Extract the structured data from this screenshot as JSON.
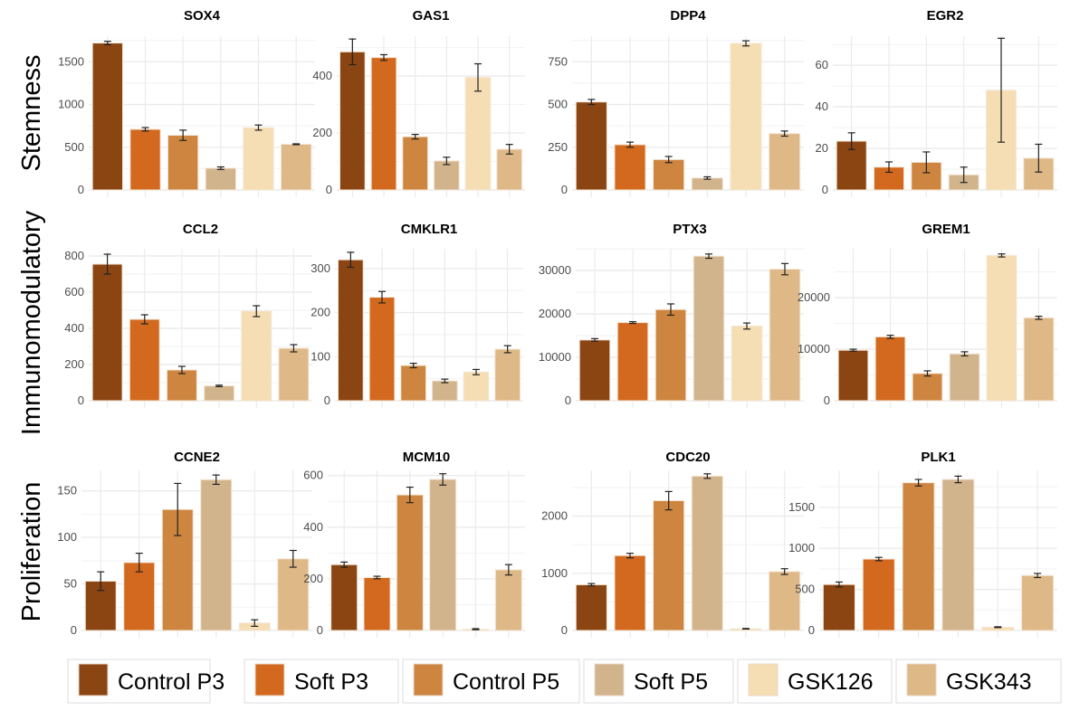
{
  "chart_data": {
    "type": "bar",
    "categories": [
      "Control P3",
      "Soft P3",
      "Control P5",
      "Soft P5",
      "GSK126",
      "GSK343"
    ],
    "colors": [
      "#8B4513",
      "#D2691E",
      "#CD853F",
      "#D2B48C",
      "#F5DEB3",
      "#DEB887"
    ],
    "legend": {
      "placement": "bottom",
      "entries": [
        "Control P3",
        "Soft P3",
        "Control P5",
        "Soft P5",
        "GSK126",
        "GSK343"
      ]
    },
    "grid": true,
    "error_bars": true,
    "rows": [
      {
        "label": "Stemness",
        "panels": [
          {
            "title": "SOX4",
            "ylim": [
              0,
              1800
            ],
            "yticks": [
              0,
              500,
              1000,
              1500
            ],
            "values": [
              1720,
              710,
              640,
              255,
              730,
              535
            ],
            "errors": [
              20,
              20,
              60,
              15,
              30,
              5
            ]
          },
          {
            "title": "GAS1",
            "ylim": [
              0,
              540
            ],
            "yticks": [
              0,
              200,
              400
            ],
            "values": [
              485,
              465,
              187,
              102,
              395,
              143
            ],
            "errors": [
              45,
              10,
              8,
              13,
              48,
              17
            ]
          },
          {
            "title": "DPP4",
            "ylim": [
              0,
              900
            ],
            "yticks": [
              0,
              250,
              500,
              750
            ],
            "values": [
              515,
              265,
              178,
              70,
              858,
              330
            ],
            "errors": [
              15,
              15,
              18,
              7,
              15,
              15
            ]
          },
          {
            "title": "EGR2",
            "ylim": [
              0,
              74
            ],
            "yticks": [
              0,
              20,
              40,
              60
            ],
            "values": [
              23.5,
              11,
              13.3,
              7.3,
              48,
              15.3
            ],
            "errors": [
              4,
              2.5,
              5,
              3.7,
              25,
              6.7
            ]
          }
        ]
      },
      {
        "label": "Immunomodulatory",
        "panels": [
          {
            "title": "CCL2",
            "ylim": [
              0,
              840
            ],
            "yticks": [
              0,
              200,
              400,
              600,
              800
            ],
            "values": [
              755,
              450,
              170,
              82,
              495,
              290
            ],
            "errors": [
              55,
              25,
              20,
              4,
              30,
              20
            ]
          },
          {
            "title": "CMKLR1",
            "ylim": [
              0,
              345
            ],
            "yticks": [
              0,
              100,
              200,
              300
            ],
            "values": [
              320,
              235,
              80,
              45,
              65,
              117
            ],
            "errors": [
              17,
              13,
              5,
              4,
              6,
              8
            ]
          },
          {
            "title": "PTX3",
            "ylim": [
              0,
              35000
            ],
            "yticks": [
              0,
              10000,
              20000,
              30000
            ],
            "values": [
              14000,
              18000,
              21000,
              33300,
              17200,
              30300
            ],
            "errors": [
              300,
              200,
              1300,
              500,
              700,
              1300
            ]
          },
          {
            "title": "GREM1",
            "ylim": [
              0,
              29500
            ],
            "yticks": [
              0,
              10000,
              20000
            ],
            "values": [
              9800,
              12400,
              5300,
              9100,
              28200,
              16100
            ],
            "errors": [
              200,
              300,
              500,
              400,
              300,
              300
            ]
          }
        ]
      },
      {
        "label": "Proliferation",
        "panels": [
          {
            "title": "CCNE2",
            "ylim": [
              0,
              172
            ],
            "yticks": [
              0,
              50,
              100,
              150
            ],
            "values": [
              53,
              73,
              130,
              162,
              8,
              77
            ],
            "errors": [
              10,
              10,
              28,
              5,
              3.5,
              9
            ]
          },
          {
            "title": "MCM10",
            "ylim": [
              0,
              620
            ],
            "yticks": [
              0,
              200,
              400,
              600
            ],
            "values": [
              255,
              205,
              525,
              585,
              5,
              235
            ],
            "errors": [
              10,
              5,
              30,
              22,
              2,
              20
            ]
          },
          {
            "title": "CDC20",
            "ylim": [
              0,
              2800
            ],
            "yticks": [
              0,
              1000,
              2000
            ],
            "values": [
              800,
              1310,
              2270,
              2700,
              30,
              1030
            ],
            "errors": [
              20,
              40,
              160,
              40,
              5,
              50
            ]
          },
          {
            "title": "PLK1",
            "ylim": [
              0,
              1950
            ],
            "yticks": [
              0,
              500,
              1000,
              1500
            ],
            "values": [
              560,
              870,
              1800,
              1840,
              40,
              670
            ],
            "errors": [
              30,
              20,
              40,
              40,
              5,
              25
            ]
          }
        ]
      }
    ]
  }
}
